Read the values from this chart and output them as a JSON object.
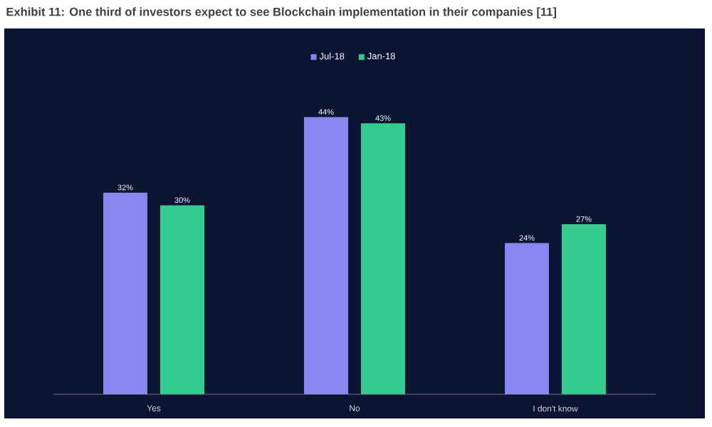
{
  "chart_data": {
    "type": "bar",
    "title": "Exhibit 11: One third of investors expect to see Blockchain implementation in their companies [11]",
    "categories": [
      "Yes",
      "No",
      "I don't know"
    ],
    "series": [
      {
        "name": "Jul-18",
        "color": "#8a86f0",
        "values": [
          32,
          44,
          24
        ],
        "value_labels": [
          "32%",
          "44%",
          "24%"
        ]
      },
      {
        "name": "Jan-18",
        "color": "#33cc8e",
        "values": [
          30,
          43,
          27
        ],
        "value_labels": [
          "30%",
          "43%",
          "27%"
        ]
      }
    ],
    "legend": "top"
  }
}
